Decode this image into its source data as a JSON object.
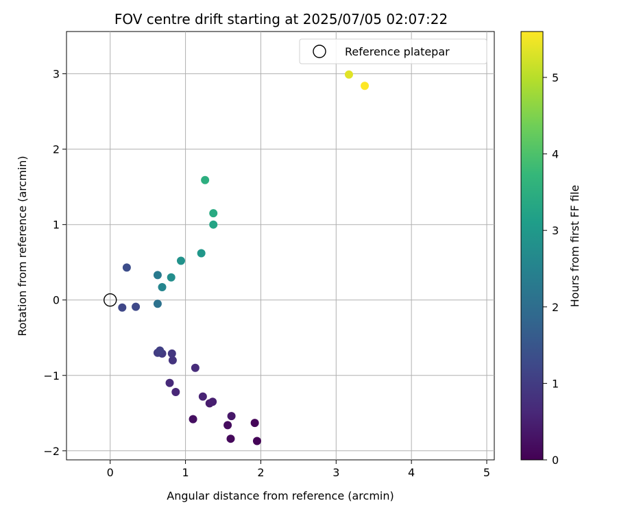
{
  "chart_data": {
    "type": "scatter",
    "title": "FOV centre drift starting at 2025/07/05 02:07:22",
    "xlabel": "Angular distance from reference (arcmin)",
    "ylabel": "Rotation from reference (arcmin)",
    "xlim": [
      -0.58,
      5.1
    ],
    "ylim": [
      -2.12,
      3.56
    ],
    "x_ticks": [
      0,
      1,
      2,
      3,
      4,
      5
    ],
    "y_ticks": [
      -2,
      -1,
      0,
      1,
      2,
      3
    ],
    "x_tick_labels": [
      "0",
      "1",
      "2",
      "3",
      "4",
      "5"
    ],
    "y_tick_labels": [
      "−2",
      "−1",
      "0",
      "1",
      "2",
      "3"
    ],
    "grid": true,
    "legend": {
      "position": "upper-right",
      "entries": [
        {
          "label": "Reference platepar",
          "marker": "open-circle",
          "x": 0,
          "y": 0
        }
      ]
    },
    "colorbar": {
      "label": "Hours from first FF file",
      "colormap": "viridis",
      "range": [
        0,
        5.6
      ],
      "ticks": [
        0,
        1,
        2,
        3,
        4,
        5
      ],
      "tick_labels": [
        "0",
        "1",
        "2",
        "3",
        "4",
        "5"
      ]
    },
    "colormap_stops": [
      "#440154",
      "#482878",
      "#3e4989",
      "#31688e",
      "#26828e",
      "#1f9e89",
      "#35b779",
      "#6ece58",
      "#b5de2b",
      "#fde725"
    ],
    "points": [
      {
        "x": 1.95,
        "y": -1.87,
        "t": 0.05
      },
      {
        "x": 1.92,
        "y": -1.63,
        "t": 0.08
      },
      {
        "x": 1.6,
        "y": -1.84,
        "t": 0.12
      },
      {
        "x": 1.56,
        "y": -1.66,
        "t": 0.18
      },
      {
        "x": 1.1,
        "y": -1.58,
        "t": 0.22
      },
      {
        "x": 1.61,
        "y": -1.54,
        "t": 0.35
      },
      {
        "x": 1.32,
        "y": -1.37,
        "t": 0.42
      },
      {
        "x": 1.36,
        "y": -1.35,
        "t": 0.48
      },
      {
        "x": 1.23,
        "y": -1.28,
        "t": 0.55
      },
      {
        "x": 0.87,
        "y": -1.22,
        "t": 0.6
      },
      {
        "x": 0.79,
        "y": -1.1,
        "t": 0.66
      },
      {
        "x": 1.13,
        "y": -0.9,
        "t": 0.7
      },
      {
        "x": 0.83,
        "y": -0.8,
        "t": 0.85
      },
      {
        "x": 0.82,
        "y": -0.71,
        "t": 0.9
      },
      {
        "x": 0.69,
        "y": -0.71,
        "t": 0.95
      },
      {
        "x": 0.63,
        "y": -0.7,
        "t": 1.0
      },
      {
        "x": 0.66,
        "y": -0.67,
        "t": 1.05
      },
      {
        "x": 0.16,
        "y": -0.1,
        "t": 1.2
      },
      {
        "x": 0.34,
        "y": -0.09,
        "t": 1.25
      },
      {
        "x": 0.22,
        "y": 0.43,
        "t": 1.32
      },
      {
        "x": 0.63,
        "y": -0.05,
        "t": 2.1
      },
      {
        "x": 0.63,
        "y": 0.33,
        "t": 2.3
      },
      {
        "x": 0.69,
        "y": 0.17,
        "t": 2.55
      },
      {
        "x": 0.81,
        "y": 0.3,
        "t": 2.75
      },
      {
        "x": 0.94,
        "y": 0.52,
        "t": 2.85
      },
      {
        "x": 1.21,
        "y": 0.62,
        "t": 2.95
      },
      {
        "x": 1.37,
        "y": 1.0,
        "t": 3.25
      },
      {
        "x": 1.37,
        "y": 1.15,
        "t": 3.4
      },
      {
        "x": 1.26,
        "y": 1.59,
        "t": 3.5
      },
      {
        "x": 3.17,
        "y": 2.99,
        "t": 5.35
      },
      {
        "x": 3.38,
        "y": 2.84,
        "t": 5.6
      }
    ]
  }
}
